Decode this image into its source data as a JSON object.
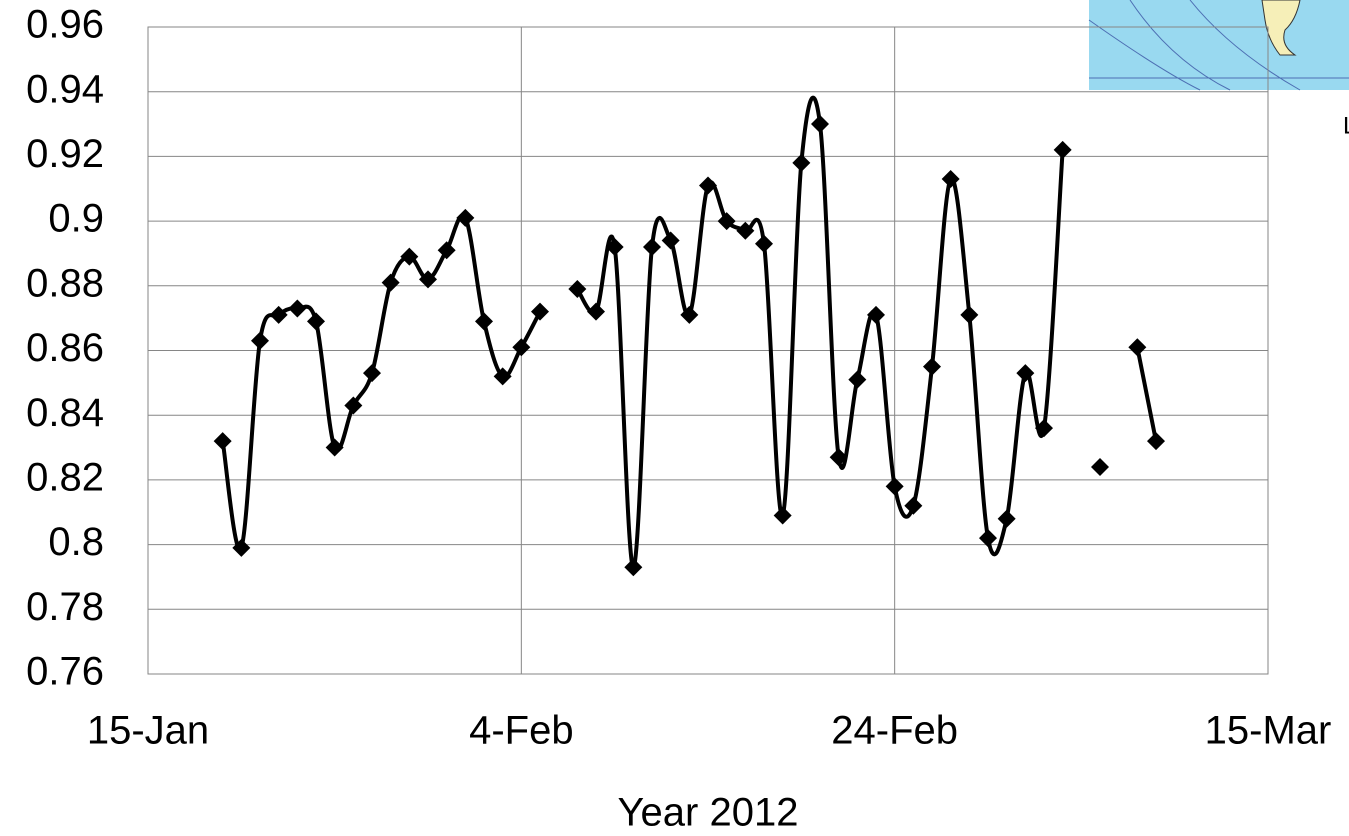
{
  "chart_data": {
    "type": "line",
    "x_title": "Year 2012",
    "x": [
      "2012-01-19",
      "2012-01-20",
      "2012-01-21",
      "2012-01-22",
      "2012-01-23",
      "2012-01-24",
      "2012-01-25",
      "2012-01-26",
      "2012-01-27",
      "2012-01-28",
      "2012-01-29",
      "2012-01-30",
      "2012-01-31",
      "2012-02-01",
      "2012-02-02",
      "2012-02-03",
      "2012-02-04",
      "2012-02-05",
      "2012-02-06",
      "2012-02-07",
      "2012-02-08",
      "2012-02-09",
      "2012-02-10",
      "2012-02-11",
      "2012-02-12",
      "2012-02-13",
      "2012-02-14",
      "2012-02-15",
      "2012-02-16",
      "2012-02-17",
      "2012-02-18",
      "2012-02-19",
      "2012-02-20",
      "2012-02-21",
      "2012-02-22",
      "2012-02-23",
      "2012-02-24",
      "2012-02-25",
      "2012-02-26",
      "2012-02-27",
      "2012-02-28",
      "2012-02-29",
      "2012-03-01",
      "2012-03-02",
      "2012-03-03",
      "2012-03-04",
      "2012-03-05",
      "2012-03-06",
      "2012-03-07",
      "2012-03-08",
      "2012-03-09"
    ],
    "series": [
      {
        "color": "#000000",
        "values": [
          0.832,
          0.799,
          0.863,
          0.871,
          0.873,
          0.869,
          0.83,
          0.843,
          0.853,
          0.881,
          0.889,
          0.882,
          0.891,
          0.901,
          0.869,
          0.852,
          0.861,
          0.872,
          null,
          0.879,
          0.872,
          0.892,
          0.793,
          0.892,
          0.894,
          0.871,
          0.911,
          0.9,
          0.897,
          0.893,
          0.809,
          0.918,
          0.93,
          0.827,
          0.851,
          0.871,
          0.818,
          0.812,
          0.855,
          0.913,
          0.871,
          0.802,
          0.808,
          0.853,
          0.836,
          0.922,
          null,
          0.824,
          null,
          0.861,
          0.832
        ]
      }
    ],
    "xlim": [
      "2012-01-15",
      "2012-03-15"
    ],
    "xticks": [
      {
        "value": "2012-01-15",
        "label": "15-Jan"
      },
      {
        "value": "2012-02-04",
        "label": "4-Feb"
      },
      {
        "value": "2012-02-24",
        "label": "24-Feb"
      },
      {
        "value": "2012-03-15",
        "label": "15-Mar"
      }
    ],
    "ylim": [
      0.76,
      0.96
    ],
    "yticks": [
      0.76,
      0.78,
      0.8,
      0.82,
      0.84,
      0.86,
      0.88,
      0.9,
      0.92,
      0.94,
      0.96
    ],
    "grid": true,
    "smooth": true,
    "annotations": [
      "L"
    ]
  }
}
